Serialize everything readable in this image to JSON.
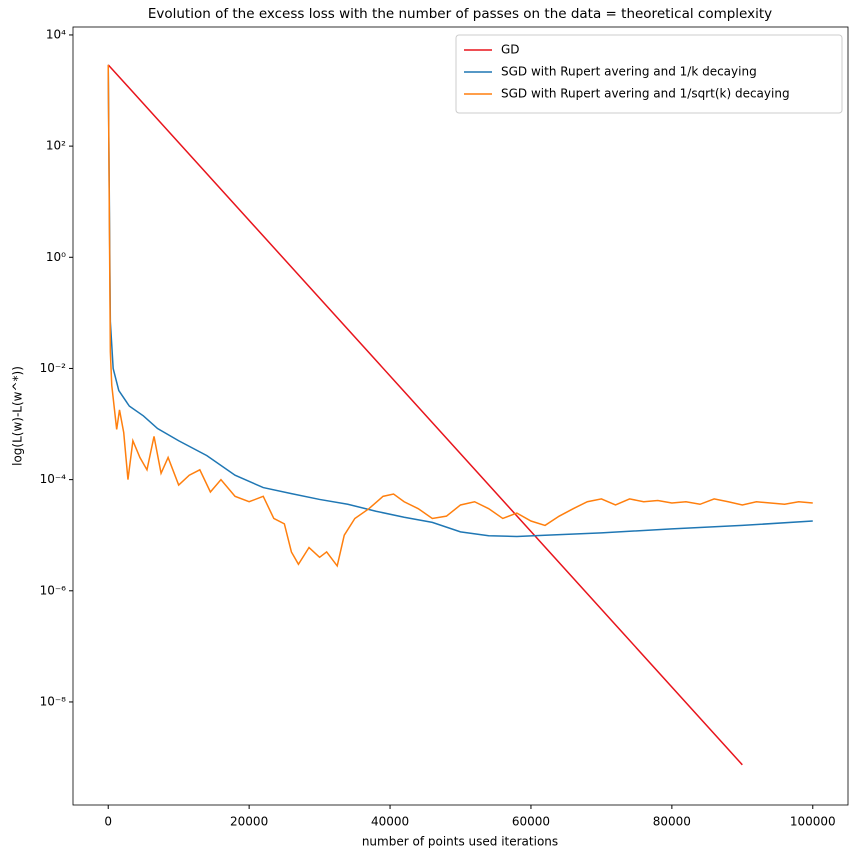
{
  "chart_data": {
    "type": "line",
    "title": "Evolution of the excess loss with the number of passes on the data = theoretical complexity",
    "x_label": "number of points used iterations",
    "y_label": "log(L(w)-L(w^*))",
    "y_scale": "log",
    "legend": "upper right",
    "xlim": [
      -5000,
      105000
    ],
    "xticks": [
      0,
      20000,
      40000,
      60000,
      80000,
      100000
    ],
    "ylim": [
      1.4e-10,
      13900
    ],
    "yticks": [
      {
        "value": 1e-08,
        "label": "10⁻⁸"
      },
      {
        "value": 1e-06,
        "label": "10⁻⁶"
      },
      {
        "value": 0.0001,
        "label": "10⁻⁴"
      },
      {
        "value": 0.01,
        "label": "10⁻²"
      },
      {
        "value": 1,
        "label": "10⁰"
      },
      {
        "value": 100,
        "label": "10²"
      },
      {
        "value": 10000,
        "label": "10⁴"
      }
    ],
    "series": [
      {
        "name": "GD",
        "color": "#e8141c",
        "x": [
          0,
          90000
        ],
        "values": [
          2900,
          7.4e-10
        ]
      },
      {
        "name": "SGD with Rupert avering and 1/k decaying",
        "color": "#1f77b4",
        "x": [
          0,
          300,
          700,
          1500,
          3000,
          5000,
          7000,
          10000,
          14000,
          18000,
          22000,
          26000,
          30000,
          34000,
          38000,
          42000,
          46000,
          50000,
          54000,
          58000,
          62000,
          70000,
          80000,
          90000,
          100000
        ],
        "values": [
          2900,
          0.07,
          0.01,
          0.004,
          0.0021,
          0.0014,
          0.00083,
          0.0005,
          0.00027,
          0.00012,
          7.2e-05,
          5.6e-05,
          4.4e-05,
          3.6e-05,
          2.7e-05,
          2.1e-05,
          1.7e-05,
          1.15e-05,
          9.8e-06,
          9.5e-06,
          1e-05,
          1.1e-05,
          1.3e-05,
          1.5e-05,
          1.8e-05
        ]
      },
      {
        "name": "SGD with Rupert avering and 1/sqrt(k) decaying",
        "color": "#ff7f0e",
        "x": [
          0,
          300,
          500,
          1200,
          1600,
          2200,
          2800,
          3500,
          4500,
          5500,
          6500,
          7500,
          8500,
          10000,
          11500,
          13000,
          14500,
          16000,
          18000,
          20000,
          22000,
          23500,
          25000,
          26000,
          27000,
          28500,
          30000,
          31000,
          32500,
          33500,
          35000,
          37000,
          39000,
          40500,
          42000,
          44000,
          46000,
          48000,
          50000,
          52000,
          54000,
          56000,
          58000,
          60000,
          62000,
          64000,
          66000,
          68000,
          70000,
          72000,
          74000,
          76000,
          78000,
          80000,
          82000,
          84000,
          86000,
          88000,
          90000,
          92000,
          94000,
          96000,
          98000,
          100000
        ],
        "values": [
          2900,
          0.02,
          0.005,
          0.0008,
          0.0018,
          0.0007,
          0.0001,
          0.0005,
          0.00025,
          0.00015,
          0.0006,
          0.00013,
          0.00025,
          8e-05,
          0.00012,
          0.00015,
          6e-05,
          0.0001,
          5e-05,
          4e-05,
          5e-05,
          2e-05,
          1.6e-05,
          5e-06,
          3e-06,
          6e-06,
          4e-06,
          5e-06,
          2.8e-06,
          1e-05,
          2e-05,
          3e-05,
          5e-05,
          5.5e-05,
          4e-05,
          3e-05,
          2e-05,
          2.2e-05,
          3.5e-05,
          4e-05,
          3e-05,
          2e-05,
          2.5e-05,
          1.8e-05,
          1.5e-05,
          2.2e-05,
          3e-05,
          4e-05,
          4.5e-05,
          3.5e-05,
          4.5e-05,
          4e-05,
          4.2e-05,
          3.8e-05,
          4e-05,
          3.6e-05,
          4.5e-05,
          4e-05,
          3.5e-05,
          4e-05,
          3.8e-05,
          3.6e-05,
          4e-05,
          3.8e-05
        ]
      }
    ]
  }
}
